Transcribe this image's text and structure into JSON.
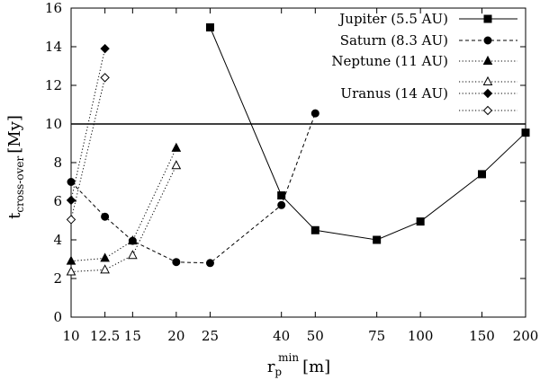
{
  "chart_data": {
    "type": "line",
    "xlabel": {
      "base": "r",
      "sub": "p",
      "sup": "min",
      "unit": "[m]"
    },
    "ylabel": {
      "base": "t",
      "sub": "cross-over",
      "unit": "[My]"
    },
    "ylim": [
      0,
      16
    ],
    "yticks": [
      0,
      2,
      4,
      6,
      8,
      10,
      12,
      14,
      16
    ],
    "xticks": [
      10,
      12.5,
      15,
      20,
      25,
      40,
      50,
      75,
      100,
      150,
      200
    ],
    "xscale": "log",
    "grid": false,
    "legend_position": "top-right",
    "hline": 10,
    "series": [
      {
        "name": "Jupiter (5.5 AU)",
        "line": "solid",
        "marker": "square-filled",
        "x": [
          25,
          40,
          50,
          75,
          100,
          150,
          200
        ],
        "y": [
          15.0,
          6.3,
          4.5,
          4.0,
          4.95,
          7.4,
          9.55
        ]
      },
      {
        "name": "Saturn (8.3 AU)",
        "line": "dashed",
        "marker": "circle-filled",
        "x": [
          10,
          12.5,
          15,
          20,
          25,
          40,
          50
        ],
        "y": [
          7.0,
          5.2,
          3.95,
          2.85,
          2.8,
          5.8,
          10.55
        ]
      },
      {
        "name": "Neptune (11 AU)",
        "line": "dotted",
        "marker": "triangle-filled",
        "x": [
          10,
          12.5,
          15,
          20
        ],
        "y": [
          2.9,
          3.05,
          3.95,
          8.75
        ]
      },
      {
        "name": "",
        "line": "dotted",
        "marker": "triangle-open",
        "x": [
          10,
          12.5,
          15,
          20
        ],
        "y": [
          2.35,
          2.45,
          3.2,
          7.85
        ]
      },
      {
        "name": "Uranus (14 AU)",
        "line": "dotted",
        "marker": "diamond-filled",
        "x": [
          10,
          12.5
        ],
        "y": [
          6.05,
          13.9
        ]
      },
      {
        "name": "",
        "line": "dotted",
        "marker": "diamond-open",
        "x": [
          10,
          12.5
        ],
        "y": [
          5.05,
          12.4
        ]
      }
    ]
  }
}
